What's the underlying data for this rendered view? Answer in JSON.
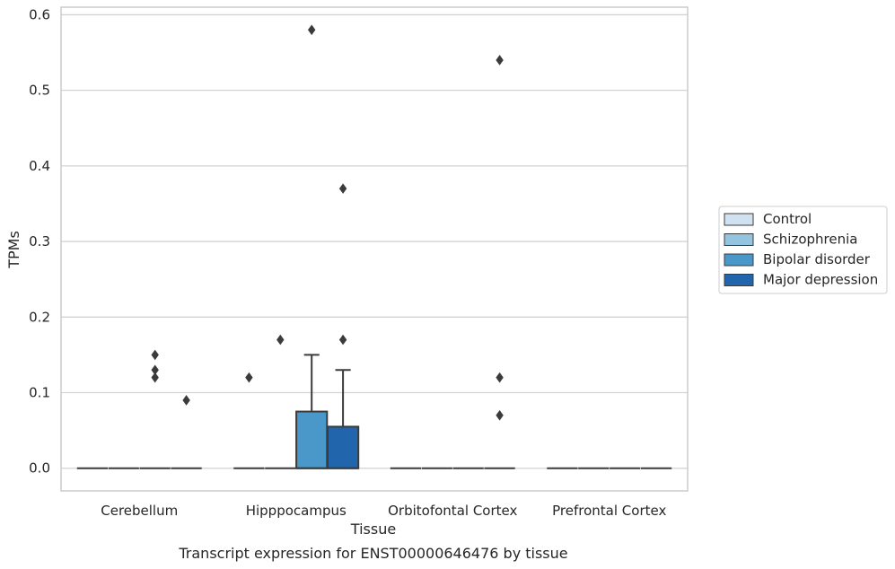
{
  "chart_data": {
    "type": "box",
    "xlabel": "Tissue",
    "ylabel": "TPMs",
    "caption": "Transcript expression for ENST00000646476 by tissue",
    "categories": [
      "Cerebellum",
      "Hipppocampus",
      "Orbitofontal Cortex",
      "Prefrontal Cortex"
    ],
    "ylim": [
      -0.03,
      0.61
    ],
    "yticks": [
      "0.0",
      "0.1",
      "0.2",
      "0.3",
      "0.4",
      "0.5",
      "0.6"
    ],
    "grid": true,
    "legend_position": "right",
    "series": [
      {
        "name": "Control",
        "color": "#d0e1f2",
        "boxes": [
          {
            "q1": 0,
            "median": 0,
            "q3": 0,
            "whisker_low": 0,
            "whisker_high": 0,
            "outliers": []
          },
          {
            "q1": 0,
            "median": 0,
            "q3": 0,
            "whisker_low": 0,
            "whisker_high": 0,
            "outliers": [
              0.12
            ]
          },
          {
            "q1": 0,
            "median": 0,
            "q3": 0,
            "whisker_low": 0,
            "whisker_high": 0,
            "outliers": []
          },
          {
            "q1": 0,
            "median": 0,
            "q3": 0,
            "whisker_low": 0,
            "whisker_high": 0,
            "outliers": []
          }
        ]
      },
      {
        "name": "Schizophrenia",
        "color": "#94c4df",
        "boxes": [
          {
            "q1": 0,
            "median": 0,
            "q3": 0,
            "whisker_low": 0,
            "whisker_high": 0,
            "outliers": []
          },
          {
            "q1": 0,
            "median": 0,
            "q3": 0,
            "whisker_low": 0,
            "whisker_high": 0,
            "outliers": [
              0.17
            ]
          },
          {
            "q1": 0,
            "median": 0,
            "q3": 0,
            "whisker_low": 0,
            "whisker_high": 0,
            "outliers": []
          },
          {
            "q1": 0,
            "median": 0,
            "q3": 0,
            "whisker_low": 0,
            "whisker_high": 0,
            "outliers": []
          }
        ]
      },
      {
        "name": "Bipolar disorder",
        "color": "#4a98c9",
        "boxes": [
          {
            "q1": 0,
            "median": 0,
            "q3": 0,
            "whisker_low": 0,
            "whisker_high": 0,
            "outliers": [
              0.15,
              0.13,
              0.12
            ]
          },
          {
            "q1": 0,
            "median": 0,
            "q3": 0.075,
            "whisker_low": 0,
            "whisker_high": 0.15,
            "outliers": [
              0.58
            ]
          },
          {
            "q1": 0,
            "median": 0,
            "q3": 0,
            "whisker_low": 0,
            "whisker_high": 0,
            "outliers": []
          },
          {
            "q1": 0,
            "median": 0,
            "q3": 0,
            "whisker_low": 0,
            "whisker_high": 0,
            "outliers": []
          }
        ]
      },
      {
        "name": "Major depression",
        "color": "#2166ac",
        "boxes": [
          {
            "q1": 0,
            "median": 0,
            "q3": 0,
            "whisker_low": 0,
            "whisker_high": 0,
            "outliers": [
              0.09
            ]
          },
          {
            "q1": 0,
            "median": 0,
            "q3": 0.055,
            "whisker_low": 0,
            "whisker_high": 0.13,
            "outliers": [
              0.37,
              0.17
            ]
          },
          {
            "q1": 0,
            "median": 0,
            "q3": 0,
            "whisker_low": 0,
            "whisker_high": 0,
            "outliers": [
              0.54,
              0.12,
              0.07
            ]
          },
          {
            "q1": 0,
            "median": 0,
            "q3": 0,
            "whisker_low": 0,
            "whisker_high": 0,
            "outliers": []
          }
        ]
      }
    ]
  }
}
